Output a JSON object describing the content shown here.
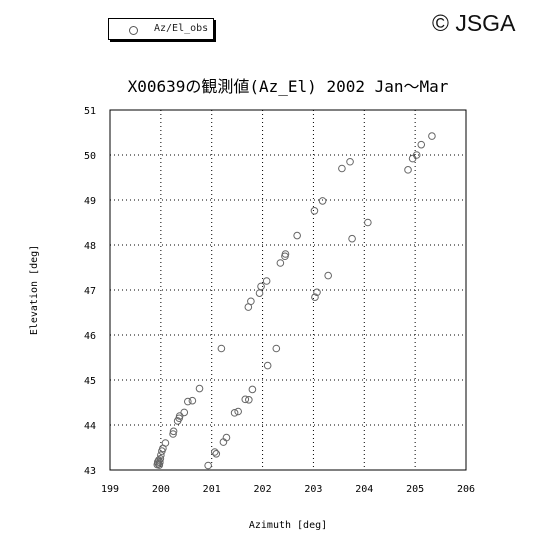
{
  "copyright": "© JSGA",
  "chart_data": {
    "type": "scatter",
    "title": "X00639の観測値(Az_El) 2002 Jan～Mar",
    "xlabel": "Azimuth [deg]",
    "ylabel": "Elevation [deg]",
    "xlim": [
      199,
      206
    ],
    "ylim": [
      43,
      51
    ],
    "xticks": [
      "199",
      "200",
      "201",
      "202",
      "203",
      "204",
      "205",
      "206"
    ],
    "yticks": [
      "43",
      "44",
      "45",
      "46",
      "47",
      "48",
      "49",
      "50",
      "51"
    ],
    "grid": true,
    "legend": "top-left",
    "marker_color": "#666666",
    "series": [
      {
        "name": "Az/El_obs",
        "points": [
          [
            199.93,
            43.12
          ],
          [
            199.94,
            43.18
          ],
          [
            199.95,
            43.14
          ],
          [
            199.96,
            43.22
          ],
          [
            199.97,
            43.11
          ],
          [
            199.98,
            43.17
          ],
          [
            199.99,
            43.25
          ],
          [
            200.0,
            43.33
          ],
          [
            200.02,
            43.42
          ],
          [
            200.04,
            43.48
          ],
          [
            200.09,
            43.6
          ],
          [
            200.24,
            43.8
          ],
          [
            200.25,
            43.86
          ],
          [
            200.33,
            44.09
          ],
          [
            200.36,
            44.15
          ],
          [
            200.37,
            44.2
          ],
          [
            200.46,
            44.28
          ],
          [
            200.53,
            44.52
          ],
          [
            200.62,
            44.54
          ],
          [
            200.76,
            44.81
          ],
          [
            200.93,
            43.1
          ],
          [
            201.06,
            43.4
          ],
          [
            201.09,
            43.36
          ],
          [
            201.19,
            45.7
          ],
          [
            201.23,
            43.62
          ],
          [
            201.29,
            43.72
          ],
          [
            201.45,
            44.27
          ],
          [
            201.52,
            44.3
          ],
          [
            201.66,
            44.57
          ],
          [
            201.73,
            44.56
          ],
          [
            201.72,
            46.62
          ],
          [
            201.77,
            46.75
          ],
          [
            201.8,
            44.79
          ],
          [
            201.94,
            46.93
          ],
          [
            201.97,
            47.08
          ],
          [
            202.08,
            47.2
          ],
          [
            202.1,
            45.32
          ],
          [
            202.27,
            45.7
          ],
          [
            202.35,
            47.6
          ],
          [
            202.44,
            47.75
          ],
          [
            202.45,
            47.8
          ],
          [
            202.68,
            48.21
          ],
          [
            203.03,
            46.84
          ],
          [
            203.07,
            46.95
          ],
          [
            203.02,
            48.76
          ],
          [
            203.18,
            48.98
          ],
          [
            203.29,
            47.32
          ],
          [
            203.56,
            49.7
          ],
          [
            203.72,
            49.85
          ],
          [
            203.76,
            48.14
          ],
          [
            204.07,
            48.5
          ],
          [
            204.86,
            49.67
          ],
          [
            204.95,
            49.92
          ],
          [
            205.03,
            50.0
          ],
          [
            205.12,
            50.23
          ],
          [
            205.33,
            50.42
          ]
        ]
      }
    ]
  }
}
